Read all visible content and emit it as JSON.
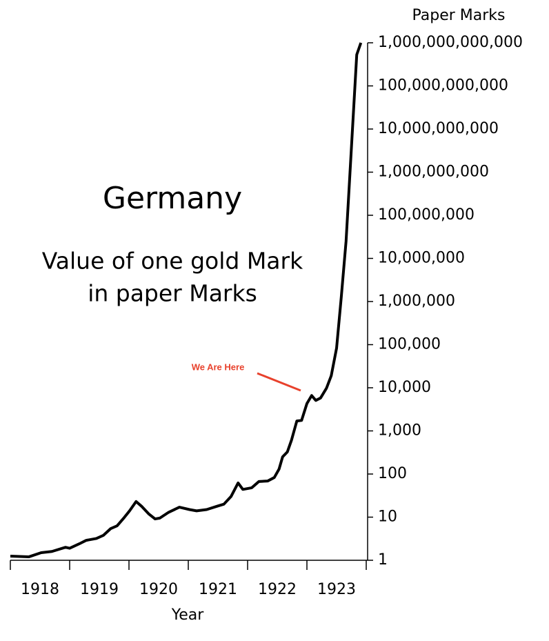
{
  "chart_data": {
    "type": "line",
    "title": "Germany",
    "subtitle": [
      "Value of one gold Mark",
      "in paper Marks"
    ],
    "y_label": "Paper Marks",
    "x_label": "Year",
    "log_scale": true,
    "color": "#000000",
    "annotation": {
      "text": "We Are Here",
      "color": "#e8412c"
    },
    "xlim": [
      1918,
      1924
    ],
    "xticks": [
      {
        "value": 1918.5,
        "label": "1918"
      },
      {
        "value": 1919.5,
        "label": "1919"
      },
      {
        "value": 1920.5,
        "label": "1920"
      },
      {
        "value": 1921.5,
        "label": "1921"
      },
      {
        "value": 1922.5,
        "label": "1922"
      },
      {
        "value": 1923.5,
        "label": "1923"
      }
    ],
    "xticks_minor": [
      1918,
      1919,
      1920,
      1921,
      1922,
      1923,
      1924
    ],
    "ylim": [
      1,
      1000000000000
    ],
    "yticks": [
      1,
      10,
      100,
      {
        "value": 1000,
        "label": "1,000"
      },
      {
        "value": 10000,
        "label": "10,000"
      },
      {
        "value": 100000,
        "label": "100,000"
      },
      {
        "value": 1000000,
        "label": "1,000,000"
      },
      {
        "value": 10000000,
        "label": "10,000,000"
      },
      {
        "value": 100000000,
        "label": "100,000,000"
      },
      {
        "value": 1000000000,
        "label": "1,000,000,000"
      },
      {
        "value": 10000000000,
        "label": "10,000,000,000"
      },
      {
        "value": 100000000000,
        "label": "100,000,000,000"
      },
      {
        "value": 1000000000000,
        "label": "1,000,000,000,000"
      }
    ],
    "x": [
      1918.0,
      1918.31,
      1918.52,
      1918.7,
      1918.93,
      1919.0,
      1919.16,
      1919.28,
      1919.45,
      1919.57,
      1919.69,
      1919.8,
      1919.92,
      1920.01,
      1920.12,
      1920.21,
      1920.33,
      1920.44,
      1920.52,
      1920.67,
      1920.85,
      1921.02,
      1921.14,
      1921.31,
      1921.49,
      1921.6,
      1921.72,
      1921.84,
      1921.92,
      1922.07,
      1922.19,
      1922.34,
      1922.45,
      1922.53,
      1922.59,
      1922.67,
      1922.74,
      1922.83,
      1922.91,
      1923.0,
      1923.08,
      1923.15,
      1923.23,
      1923.33,
      1923.41,
      1923.5,
      1923.58,
      1923.66,
      1923.76,
      1923.84,
      1923.91
    ],
    "values": [
      1.25,
      1.2,
      1.5,
      1.6,
      2.0,
      1.9,
      2.4,
      2.9,
      3.2,
      3.8,
      5.4,
      6.3,
      9.8,
      14,
      23,
      18,
      12,
      9.1,
      9.5,
      13,
      17,
      15,
      14,
      15,
      18,
      20,
      30,
      62,
      44,
      48,
      67,
      69,
      83,
      130,
      250,
      325,
      610,
      1700,
      1750,
      4300,
      6600,
      5100,
      5800,
      9800,
      19000,
      83000,
      1300000,
      25000000,
      6300000000,
      530000000000,
      1000000000000
    ]
  }
}
